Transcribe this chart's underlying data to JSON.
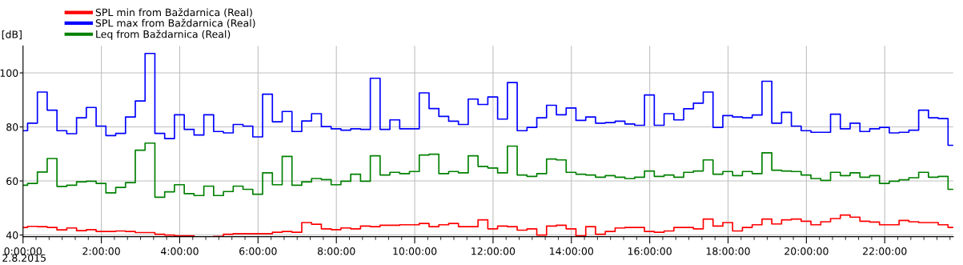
{
  "chart_data": {
    "type": "step",
    "ylabel": "[dB]",
    "annotations": [
      "2.8.2015"
    ],
    "x": [
      0,
      0.1167,
      0.3667,
      0.6167,
      0.8667,
      1.1167,
      1.3667,
      1.6167,
      1.8667,
      2.1167,
      2.3667,
      2.6167,
      2.8667,
      3.1167,
      3.3667,
      3.6167,
      3.8667,
      4.1167,
      4.3667,
      4.6167,
      4.8667,
      5.1167,
      5.3667,
      5.6167,
      5.8667,
      6.1167,
      6.3667,
      6.6167,
      6.8667,
      7.1167,
      7.3667,
      7.6167,
      7.8667,
      8.1167,
      8.3667,
      8.6167,
      8.8667,
      9.1167,
      9.3667,
      9.6167,
      9.8667,
      10.1167,
      10.3667,
      10.6167,
      10.8667,
      11.1167,
      11.3667,
      11.6167,
      11.8667,
      12.1167,
      12.3667,
      12.6167,
      12.8667,
      13.1167,
      13.3667,
      13.6167,
      13.8667,
      14.1167,
      14.3667,
      14.6167,
      14.8667,
      15.1167,
      15.3667,
      15.6167,
      15.8667,
      16.1167,
      16.3667,
      16.6167,
      16.8667,
      17.1167,
      17.3667,
      17.6167,
      17.8667,
      18.1167,
      18.3667,
      18.6167,
      18.8667,
      19.1167,
      19.3667,
      19.6167,
      19.8667,
      20.1167,
      20.3667,
      20.6167,
      20.8667,
      21.1167,
      21.3667,
      21.6167,
      21.8667,
      22.1167,
      22.3667,
      22.6167,
      22.8667,
      23.1167,
      23.3667,
      23.6167,
      23.75
    ],
    "series": [
      {
        "name": "SPL min from Baždarnica (Real)",
        "color": "#ff0000",
        "values": [
          42.8,
          43.2,
          43.1,
          42.8,
          41.9,
          42.6,
          41.6,
          42.0,
          41.3,
          41.3,
          41.5,
          41.3,
          40.9,
          40.9,
          40.3,
          40.0,
          39.7,
          39.7,
          null,
          null,
          39.5,
          40.3,
          40.5,
          40.5,
          40.5,
          40.5,
          41.0,
          41.3,
          41.0,
          44.6,
          44.0,
          42.3,
          42.0,
          42.6,
          42.3,
          43.3,
          43.1,
          43.6,
          43.6,
          43.8,
          43.8,
          44.3,
          43.1,
          43.8,
          44.3,
          43.1,
          43.1,
          45.6,
          42.3,
          43.3,
          43.1,
          41.8,
          42.3,
          40.0,
          43.3,
          43.6,
          42.3,
          39.7,
          43.1,
          40.3,
          41.3,
          42.6,
          42.8,
          42.8,
          41.3,
          41.0,
          41.5,
          42.8,
          42.8,
          42.3,
          45.9,
          43.3,
          44.6,
          41.5,
          42.8,
          43.8,
          45.9,
          44.1,
          45.6,
          45.9,
          45.1,
          43.8,
          44.9,
          46.1,
          47.4,
          46.6,
          45.1,
          44.8,
          43.8,
          43.8,
          45.4,
          44.9,
          44.6,
          44.6,
          43.8,
          42.8,
          42.8
        ]
      },
      {
        "name": "SPL max from Baždarnica (Real)",
        "color": "#0000ff",
        "values": [
          78.6,
          81.4,
          92.9,
          86.2,
          78.6,
          77.5,
          83.4,
          87.2,
          80.3,
          76.8,
          77.6,
          83.7,
          89.6,
          107.2,
          77.6,
          75.7,
          84.5,
          79.1,
          77.0,
          84.5,
          78.3,
          77.8,
          80.9,
          80.3,
          76.3,
          92.1,
          81.9,
          85.7,
          78.3,
          82.2,
          84.9,
          80.1,
          79.3,
          78.8,
          79.3,
          79.1,
          98.0,
          79.1,
          82.6,
          79.3,
          79.3,
          92.6,
          86.8,
          83.9,
          82.1,
          80.9,
          90.3,
          88.3,
          91.1,
          82.9,
          96.4,
          78.6,
          79.8,
          83.4,
          88.0,
          84.5,
          87.0,
          82.4,
          83.7,
          81.4,
          81.6,
          82.1,
          81.1,
          80.6,
          91.8,
          80.6,
          84.9,
          82.6,
          86.7,
          88.8,
          92.9,
          79.8,
          84.2,
          83.7,
          83.4,
          84.4,
          96.9,
          81.4,
          85.4,
          80.3,
          78.6,
          78.0,
          78.0,
          84.7,
          79.3,
          81.4,
          78.3,
          79.3,
          79.8,
          77.8,
          78.0,
          78.8,
          86.2,
          83.4,
          83.1,
          73.2,
          73.2
        ]
      },
      {
        "name": "Leq from Baždarnica (Real)",
        "color": "#008000",
        "values": [
          58.4,
          59.1,
          63.3,
          68.3,
          58.0,
          58.4,
          59.7,
          59.9,
          59.1,
          55.6,
          57.6,
          59.4,
          71.4,
          74.0,
          54.0,
          56.0,
          58.6,
          55.3,
          54.6,
          58.1,
          54.6,
          56.1,
          58.1,
          56.9,
          55.1,
          63.0,
          58.6,
          69.1,
          58.4,
          59.7,
          60.9,
          60.5,
          58.6,
          59.9,
          62.5,
          59.9,
          69.3,
          62.2,
          63.2,
          62.7,
          63.5,
          69.6,
          69.9,
          62.7,
          63.5,
          63.0,
          69.3,
          65.4,
          64.8,
          63.0,
          72.9,
          62.2,
          61.7,
          62.7,
          68.1,
          67.8,
          63.2,
          62.5,
          62.2,
          61.4,
          62.0,
          61.4,
          60.9,
          61.4,
          63.7,
          61.7,
          62.2,
          61.4,
          63.2,
          63.7,
          67.8,
          62.5,
          63.5,
          62.0,
          63.5,
          62.7,
          70.4,
          64.0,
          63.7,
          63.5,
          62.2,
          60.9,
          60.2,
          63.2,
          62.0,
          63.0,
          61.4,
          62.0,
          59.1,
          59.9,
          60.4,
          61.2,
          63.2,
          61.4,
          61.7,
          56.9,
          56.9
        ]
      }
    ],
    "xlim": [
      0,
      23.75
    ],
    "ylim": [
      39.4,
      110
    ],
    "xticks": [
      {
        "value": 0,
        "label": "0:00:00"
      },
      {
        "value": 0.3333,
        "label": null
      },
      {
        "value": 0.6667,
        "label": null
      },
      {
        "value": 1,
        "label": null
      },
      {
        "value": 1.3333,
        "label": null
      },
      {
        "value": 1.6667,
        "label": null
      },
      {
        "value": 2,
        "label": "2:00:00"
      },
      {
        "value": 2.3333,
        "label": null
      },
      {
        "value": 2.6667,
        "label": null
      },
      {
        "value": 3,
        "label": null
      },
      {
        "value": 3.3333,
        "label": null
      },
      {
        "value": 3.6667,
        "label": null
      },
      {
        "value": 4,
        "label": "4:00:00"
      },
      {
        "value": 4.3333,
        "label": null
      },
      {
        "value": 4.6667,
        "label": null
      },
      {
        "value": 5,
        "label": null
      },
      {
        "value": 5.3333,
        "label": null
      },
      {
        "value": 5.6667,
        "label": null
      },
      {
        "value": 6,
        "label": "6:00:00"
      },
      {
        "value": 6.3333,
        "label": null
      },
      {
        "value": 6.6667,
        "label": null
      },
      {
        "value": 7,
        "label": null
      },
      {
        "value": 7.3333,
        "label": null
      },
      {
        "value": 7.6667,
        "label": null
      },
      {
        "value": 8,
        "label": "8:00:00"
      },
      {
        "value": 8.3333,
        "label": null
      },
      {
        "value": 8.6667,
        "label": null
      },
      {
        "value": 9,
        "label": null
      },
      {
        "value": 9.3333,
        "label": null
      },
      {
        "value": 9.6667,
        "label": null
      },
      {
        "value": 10,
        "label": "10:00:00"
      },
      {
        "value": 10.3333,
        "label": null
      },
      {
        "value": 10.6667,
        "label": null
      },
      {
        "value": 11,
        "label": null
      },
      {
        "value": 11.3333,
        "label": null
      },
      {
        "value": 11.6667,
        "label": null
      },
      {
        "value": 12,
        "label": "12:00:00"
      },
      {
        "value": 12.3333,
        "label": null
      },
      {
        "value": 12.6667,
        "label": null
      },
      {
        "value": 13,
        "label": null
      },
      {
        "value": 13.3333,
        "label": null
      },
      {
        "value": 13.6667,
        "label": null
      },
      {
        "value": 14,
        "label": "14:00:00"
      },
      {
        "value": 14.3333,
        "label": null
      },
      {
        "value": 14.6667,
        "label": null
      },
      {
        "value": 15,
        "label": null
      },
      {
        "value": 15.3333,
        "label": null
      },
      {
        "value": 15.6667,
        "label": null
      },
      {
        "value": 16,
        "label": "16:00:00"
      },
      {
        "value": 16.3333,
        "label": null
      },
      {
        "value": 16.6667,
        "label": null
      },
      {
        "value": 17,
        "label": null
      },
      {
        "value": 17.3333,
        "label": null
      },
      {
        "value": 17.6667,
        "label": null
      },
      {
        "value": 18,
        "label": "18:00:00"
      },
      {
        "value": 18.3333,
        "label": null
      },
      {
        "value": 18.6667,
        "label": null
      },
      {
        "value": 19,
        "label": null
      },
      {
        "value": 19.3333,
        "label": null
      },
      {
        "value": 19.6667,
        "label": null
      },
      {
        "value": 20,
        "label": "20:00:00"
      },
      {
        "value": 20.3333,
        "label": null
      },
      {
        "value": 20.6667,
        "label": null
      },
      {
        "value": 21,
        "label": null
      },
      {
        "value": 21.3333,
        "label": null
      },
      {
        "value": 21.6667,
        "label": null
      },
      {
        "value": 22,
        "label": "22:00:00"
      },
      {
        "value": 22.3333,
        "label": null
      },
      {
        "value": 22.6667,
        "label": null
      },
      {
        "value": 23,
        "label": null
      },
      {
        "value": 23.3333,
        "label": null
      },
      {
        "value": 23.6667,
        "label": null
      }
    ],
    "yticks": [
      40,
      60,
      80,
      100
    ],
    "grid": true,
    "legend": "top left"
  }
}
